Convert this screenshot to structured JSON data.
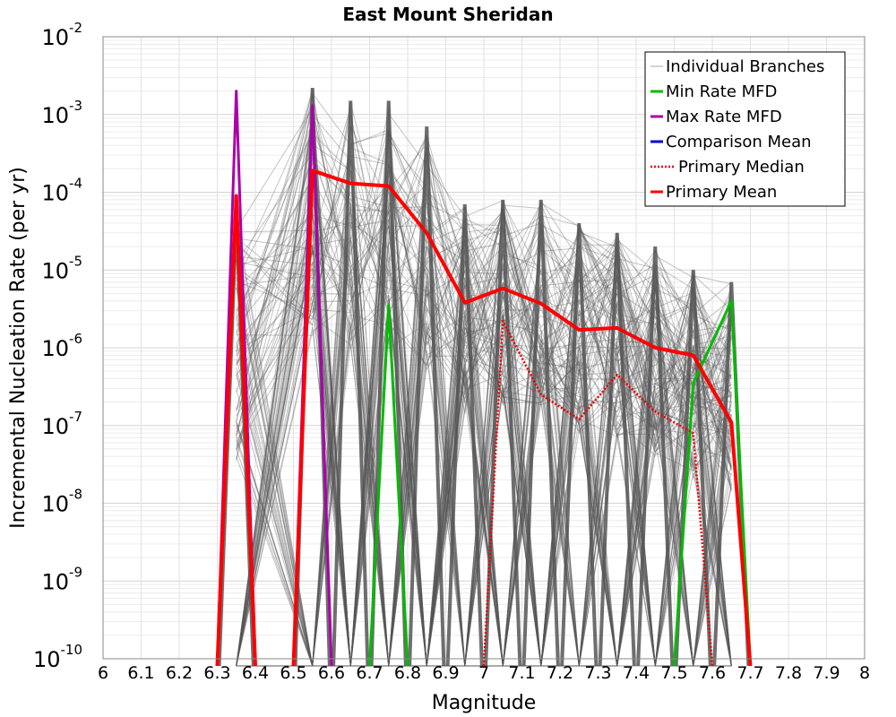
{
  "chart_data": {
    "type": "line",
    "title": "East Mount Sheridan",
    "xlabel": "Magnitude",
    "ylabel": "Incremental Nucleation Rate (per yr)",
    "xlim": [
      6,
      8
    ],
    "ylim": [
      1e-10,
      0.01
    ],
    "yscale": "log",
    "grid": true,
    "x_ticks": [
      "6",
      "6.1",
      "6.2",
      "6.3",
      "6.4",
      "6.5",
      "6.6",
      "6.7",
      "6.8",
      "6.9",
      "7",
      "7.1",
      "7.2",
      "7.3",
      "7.4",
      "7.5",
      "7.6",
      "7.7",
      "7.8",
      "7.9",
      "8"
    ],
    "y_ticks": [
      {
        "base": "10",
        "exp": "-2"
      },
      {
        "base": "10",
        "exp": "-3"
      },
      {
        "base": "10",
        "exp": "-4"
      },
      {
        "base": "10",
        "exp": "-5"
      },
      {
        "base": "10",
        "exp": "-6"
      },
      {
        "base": "10",
        "exp": "-7"
      },
      {
        "base": "10",
        "exp": "-8"
      },
      {
        "base": "10",
        "exp": "-9"
      },
      {
        "base": "10",
        "exp": "-10"
      }
    ],
    "legend_position": "top-right",
    "series": [
      {
        "name": "Individual Branches",
        "style": "thin-gray",
        "color": "#555555",
        "note": "hundreds of logic-tree branches; envelope of top values shown",
        "x": [
          6.35,
          6.55,
          6.65,
          6.75,
          6.85,
          6.95,
          7.05,
          7.15,
          7.25,
          7.35,
          7.45,
          7.55,
          7.65
        ],
        "y": [
          5e-05,
          0.0022,
          0.0015,
          0.0015,
          0.0007,
          7e-05,
          8e-05,
          8e-05,
          4e-05,
          3e-05,
          2e-05,
          1e-05,
          7e-06
        ]
      },
      {
        "name": "Min Rate MFD",
        "color": "#00bb00",
        "x": [
          6.75,
          7.55,
          7.65
        ],
        "y": [
          3.5e-06,
          3.5e-07,
          4e-06
        ]
      },
      {
        "name": "Max Rate MFD",
        "color": "#aa00aa",
        "x": [
          6.35,
          6.55
        ],
        "y": [
          0.002,
          0.0013
        ]
      },
      {
        "name": "Comparison Mean",
        "color": "#0000dd",
        "x": [],
        "y": []
      },
      {
        "name": "Primary Median",
        "color": "#ee0000",
        "style": "dotted",
        "x": [
          7.05,
          7.15,
          7.25,
          7.35,
          7.45,
          7.55
        ],
        "y": [
          2.2e-06,
          2.5e-07,
          1.2e-07,
          4.5e-07,
          1.5e-07,
          8e-08
        ]
      },
      {
        "name": "Primary Mean",
        "color": "#ff0000",
        "x": [
          6.35,
          6.55,
          6.65,
          6.75,
          6.85,
          6.95,
          7.05,
          7.15,
          7.25,
          7.35,
          7.45,
          7.55,
          7.65
        ],
        "y": [
          9e-05,
          0.00019,
          0.00013,
          0.00012,
          3e-05,
          3.8e-06,
          5.8e-06,
          3.7e-06,
          1.7e-06,
          1.8e-06,
          1e-06,
          8e-07,
          1.1e-07
        ]
      }
    ]
  }
}
